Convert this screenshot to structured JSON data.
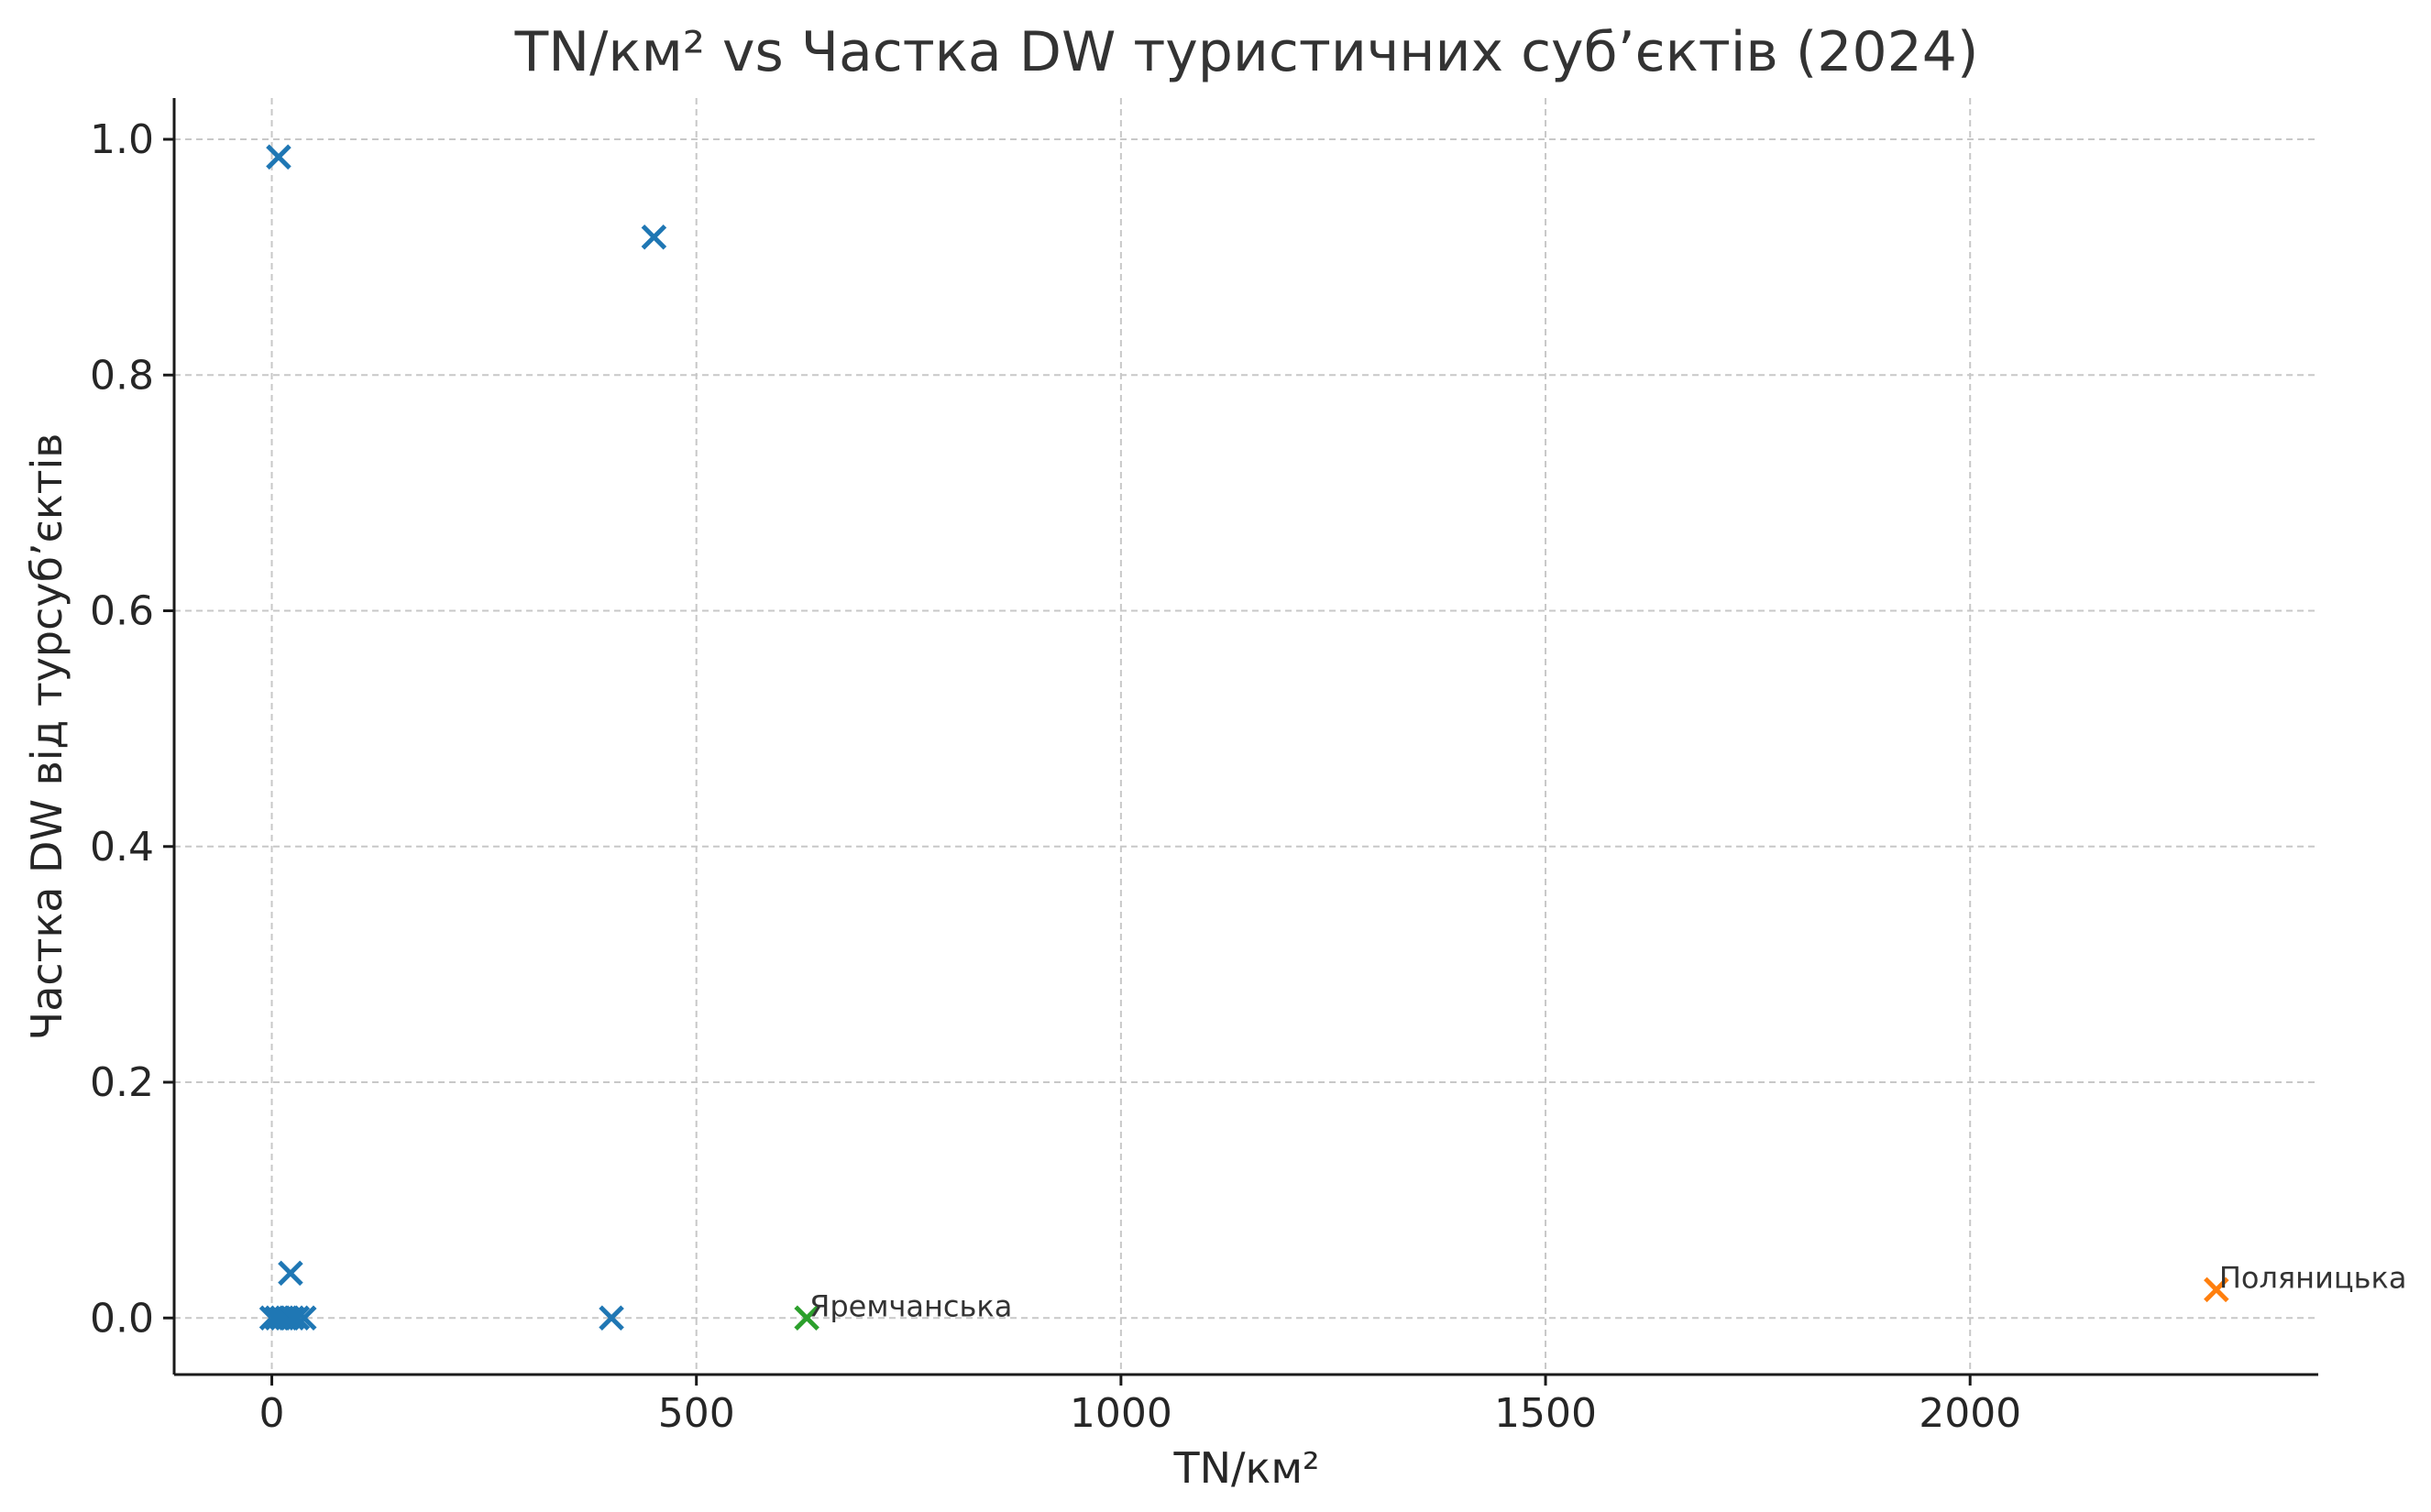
{
  "chart_data": {
    "type": "scatter",
    "title": "TN/км² vs Частка DW туристичних суб’єктів (2024)",
    "xlabel": "TN/км²",
    "ylabel": "Частка DW від турсуб’єктів",
    "xlim": [
      -115,
      2410
    ],
    "ylim": [
      -0.048,
      1.035
    ],
    "xticks": [
      0,
      500,
      1000,
      1500,
      2000
    ],
    "xtick_labels": [
      "0",
      "500",
      "1000",
      "1500",
      "2000"
    ],
    "yticks": [
      0.0,
      0.2,
      0.4,
      0.6,
      0.8,
      1.0
    ],
    "ytick_labels": [
      "0.0",
      "0.2",
      "0.4",
      "0.6",
      "0.8",
      "1.0"
    ],
    "grid": true,
    "marker": "x",
    "series": [
      {
        "color": "#1f77b4",
        "points": [
          {
            "x": 8,
            "y": 0.985
          },
          {
            "x": 450,
            "y": 0.917
          },
          {
            "x": 22,
            "y": 0.038
          },
          {
            "x": 0,
            "y": 0.0
          },
          {
            "x": 6,
            "y": 0.0
          },
          {
            "x": 12,
            "y": 0.0
          },
          {
            "x": 18,
            "y": 0.0
          },
          {
            "x": 24,
            "y": 0.0
          },
          {
            "x": 30,
            "y": 0.0
          },
          {
            "x": 38,
            "y": 0.0
          },
          {
            "x": 400,
            "y": 0.0
          }
        ]
      },
      {
        "color": "#2ca02c",
        "points": [
          {
            "x": 630,
            "y": 0.0,
            "label": "Яремчанська"
          }
        ]
      },
      {
        "color": "#ff7f0e",
        "points": [
          {
            "x": 2290,
            "y": 0.024,
            "label": "Поляницька"
          }
        ]
      }
    ]
  }
}
